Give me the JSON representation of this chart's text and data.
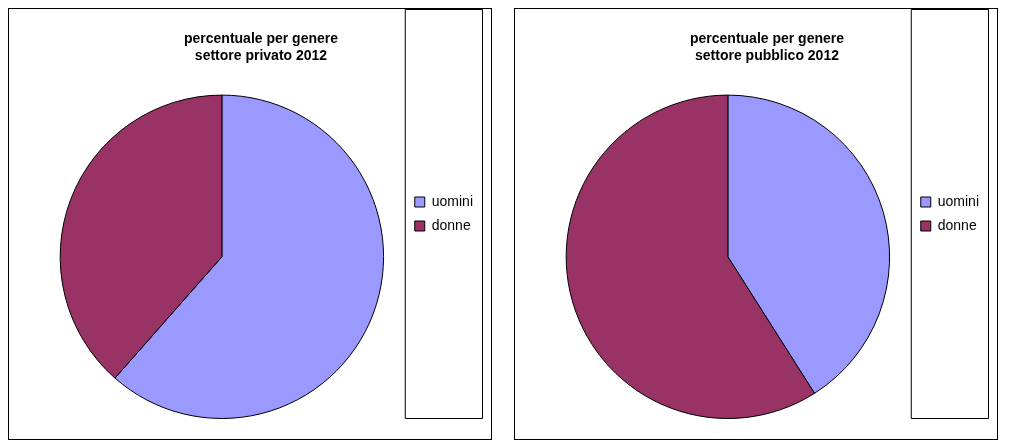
{
  "chart_data": [
    {
      "type": "pie",
      "title": "percentuale per genere\nsettore privato 2012",
      "categories": [
        "uomini",
        "donne"
      ],
      "values": [
        61.5,
        38.5
      ],
      "colors": [
        "#9999ff",
        "#993366"
      ],
      "legend": "right"
    },
    {
      "type": "pie",
      "title": "percentuale per genere\nsettore pubblico 2012",
      "categories": [
        "uomini",
        "donne"
      ],
      "values": [
        41,
        59
      ],
      "colors": [
        "#9999ff",
        "#993366"
      ],
      "legend": "right"
    }
  ]
}
